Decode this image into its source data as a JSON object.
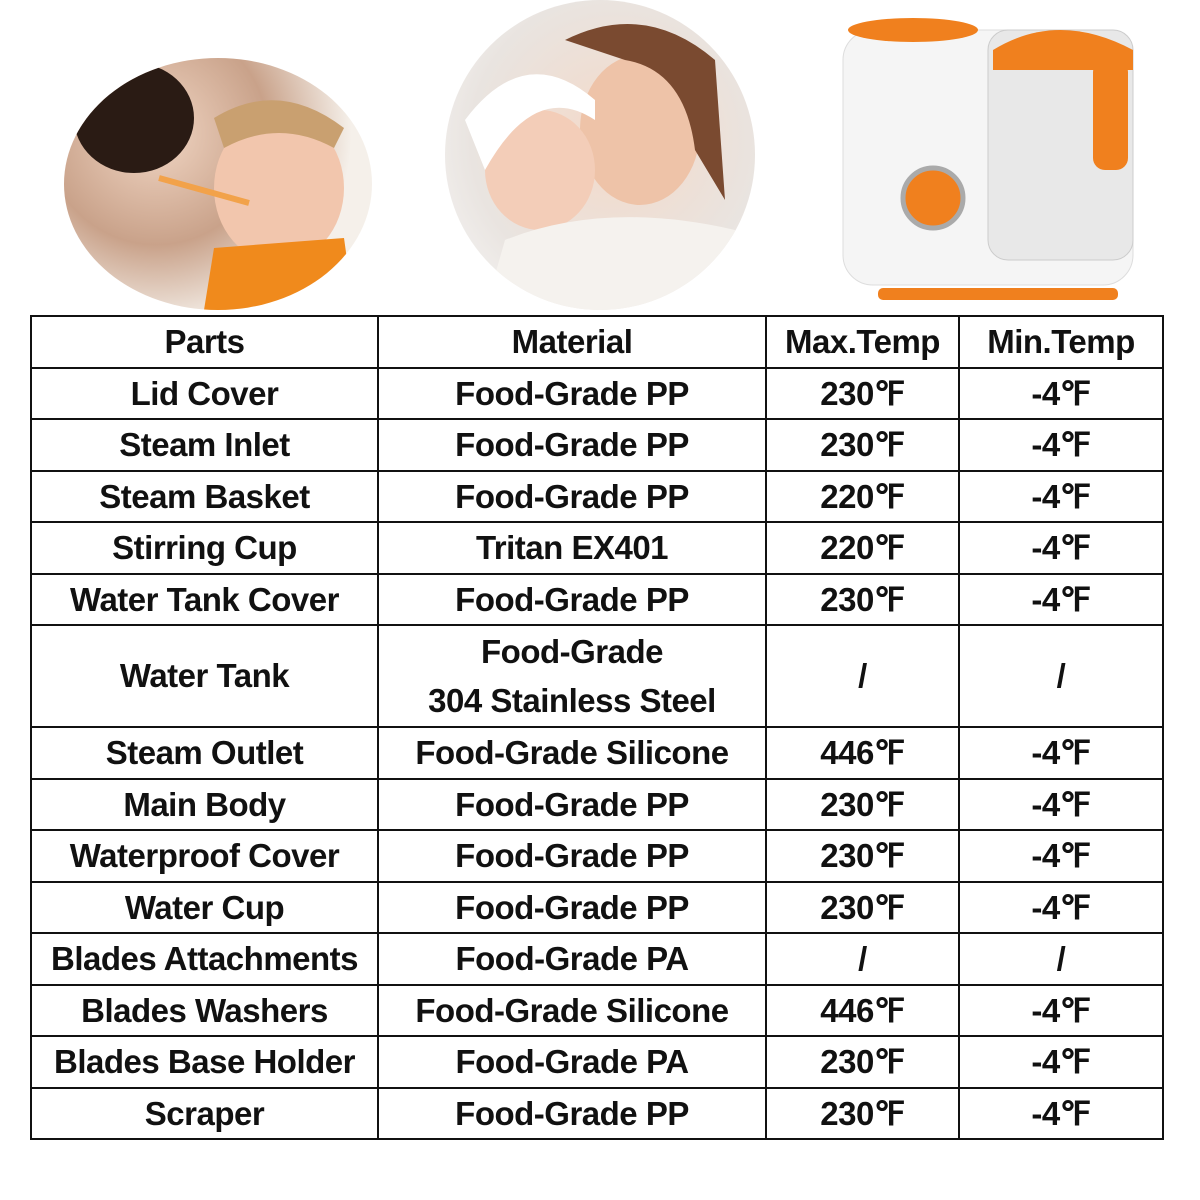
{
  "table": {
    "headers": [
      "Parts",
      "Material",
      "Max.Temp",
      "Min.Temp"
    ],
    "rows": [
      [
        "Lid Cover",
        "Food-Grade PP",
        "230℉",
        "-4℉"
      ],
      [
        "Steam Inlet",
        "Food-Grade PP",
        "230℉",
        "-4℉"
      ],
      [
        "Steam Basket",
        "Food-Grade PP",
        "220℉",
        "-4℉"
      ],
      [
        "Stirring Cup",
        "Tritan EX401",
        "220℉",
        "-4℉"
      ],
      [
        "Water Tank Cover",
        "Food-Grade PP",
        "230℉",
        "-4℉"
      ],
      [
        "Water Tank",
        "Food-Grade\n304 Stainless Steel",
        "/",
        "/"
      ],
      [
        "Steam Outlet",
        "Food-Grade Silicone",
        "446℉",
        "-4℉"
      ],
      [
        "Main Body",
        "Food-Grade PP",
        "230℉",
        "-4℉"
      ],
      [
        "Waterproof Cover",
        "Food-Grade PP",
        "230℉",
        "-4℉"
      ],
      [
        "Water Cup",
        "Food-Grade PP",
        "230℉",
        "-4℉"
      ],
      [
        "Blades Attachments",
        "Food-Grade PA",
        "/",
        "/"
      ],
      [
        "Blades Washers",
        "Food-Grade Silicone",
        "446℉",
        "-4℉"
      ],
      [
        "Blades Base Holder",
        "Food-Grade PA",
        "230℉",
        "-4℉"
      ],
      [
        "Scraper",
        "Food-Grade PP",
        "230℉",
        "-4℉"
      ]
    ]
  },
  "colors": {
    "accent": "#f0801e",
    "border": "#111111"
  }
}
